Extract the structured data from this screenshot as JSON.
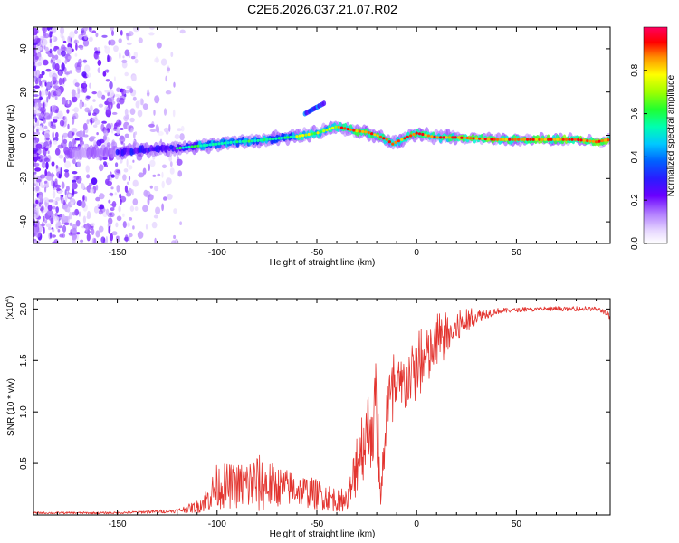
{
  "figure": {
    "title": "C2E6.2026.037.21.07.R02"
  },
  "colors": {
    "snr_line": "#e3342f",
    "axis": "#000000",
    "colormap": [
      "#ffffff",
      "#e6d6ff",
      "#b07bff",
      "#7a1cff",
      "#3a00ff",
      "#0030ff",
      "#00b8ff",
      "#00ffd0",
      "#20ff40",
      "#b0ff00",
      "#ffff00",
      "#ff9000",
      "#ff0000",
      "#ff0060"
    ]
  },
  "chart_data": [
    {
      "type": "heatmap",
      "name": "spectrogram",
      "xlabel": "Height of straight line (km)",
      "ylabel": "Frequency (Hz)",
      "xlim": [
        -192,
        97
      ],
      "ylim": [
        -50,
        50
      ],
      "xticks": [
        -150,
        -100,
        -50,
        0,
        50
      ],
      "xtick_labels": [
        "-150",
        "-100",
        "-50",
        "0",
        "50"
      ],
      "yticks": [
        -40,
        -20,
        0,
        20,
        40
      ],
      "ytick_labels": [
        "-40",
        "-20",
        "0",
        "20",
        "40"
      ],
      "ridge": {
        "x": [
          -192,
          -170,
          -150,
          -140,
          -130,
          -120,
          -110,
          -100,
          -90,
          -80,
          -70,
          -60,
          -50,
          -45,
          -40,
          -35,
          -30,
          -25,
          -20,
          -15,
          -12,
          -10,
          -5,
          0,
          5,
          10,
          20,
          40,
          60,
          80,
          90,
          97
        ],
        "y": [
          -8,
          -8,
          -7.5,
          -7,
          -6.5,
          -6,
          -5,
          -4,
          -3,
          -2.5,
          -1.5,
          -0.5,
          1,
          2.5,
          4,
          3,
          2,
          1.5,
          0,
          -2,
          -4,
          -3,
          -1,
          1,
          0,
          -1,
          -1,
          -2,
          -2,
          -2,
          -3,
          -2
        ]
      },
      "colorbar": {
        "label": "Normalized spectral amplitude",
        "range": [
          0,
          1
        ],
        "ticks": [
          0.0,
          0.2,
          0.4,
          0.6,
          0.8
        ],
        "tick_labels": [
          "0.0",
          "0.2",
          "0.4",
          "0.6",
          "0.8"
        ]
      }
    },
    {
      "type": "line",
      "name": "snr",
      "xlabel": "Height of straight line (km)",
      "ylabel": "SNR (10 * v/v)",
      "scale_label": "(x10",
      "scale_exponent": "4",
      "scale_suffix": ")",
      "xlim": [
        -192,
        97
      ],
      "ylim": [
        0,
        2.1
      ],
      "xticks": [
        -150,
        -100,
        -50,
        0,
        50
      ],
      "xtick_labels": [
        "-150",
        "-100",
        "-50",
        "0",
        "50"
      ],
      "yticks": [
        0.5,
        1.0,
        1.5,
        2.0
      ],
      "ytick_labels": [
        "0.5",
        "1.0",
        "1.5",
        "2.0"
      ],
      "series": [
        {
          "name": "SNR",
          "envelope": {
            "x": [
              -192,
              -150,
              -120,
              -110,
              -105,
              -100,
              -90,
              -80,
              -70,
              -60,
              -50,
              -40,
              -35,
              -32,
              -30,
              -25,
              -20,
              -18,
              -15,
              -10,
              -5,
              0,
              5,
              10,
              20,
              30,
              40,
              50,
              70,
              85,
              90,
              95,
              97
            ],
            "mid": [
              0.02,
              0.02,
              0.04,
              0.08,
              0.15,
              0.28,
              0.28,
              0.3,
              0.28,
              0.25,
              0.2,
              0.15,
              0.12,
              0.3,
              0.55,
              0.8,
              0.95,
              0.08,
              1.05,
              1.15,
              1.3,
              1.4,
              1.5,
              1.65,
              1.8,
              1.93,
              1.98,
              1.99,
              2.0,
              2.0,
              2.0,
              1.97,
              1.9
            ],
            "amp": [
              0.01,
              0.01,
              0.02,
              0.06,
              0.12,
              0.22,
              0.22,
              0.3,
              0.2,
              0.16,
              0.15,
              0.12,
              0.08,
              0.25,
              0.35,
              0.4,
              0.45,
              0.05,
              0.4,
              0.35,
              0.3,
              0.3,
              0.3,
              0.25,
              0.15,
              0.07,
              0.03,
              0.02,
              0.02,
              0.02,
              0.02,
              0.03,
              0.04
            ]
          }
        }
      ]
    }
  ]
}
